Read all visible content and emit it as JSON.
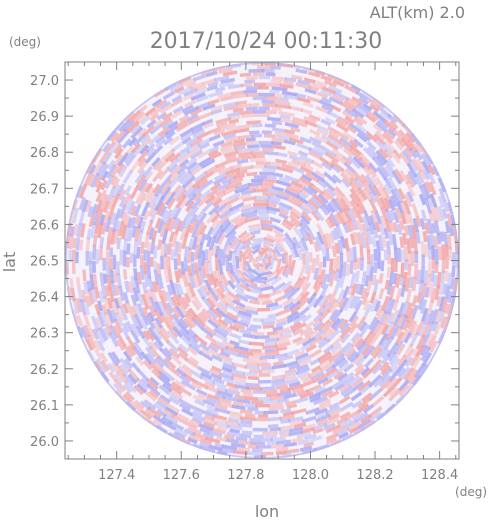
{
  "chart_data": {
    "type": "heatmap",
    "title": "2017/10/24 00:11:30",
    "altitude_label": "ALT(km) 2.0",
    "xlabel": "lon",
    "ylabel": "lat",
    "x_unit": "(deg)",
    "y_unit": "(deg)",
    "xlim": [
      127.24,
      128.46
    ],
    "ylim": [
      25.95,
      27.05
    ],
    "x_ticks": [
      127.4,
      127.6,
      127.8,
      128.0,
      128.2,
      128.4
    ],
    "y_ticks": [
      26.0,
      26.1,
      26.2,
      26.3,
      26.4,
      26.5,
      26.6,
      26.7,
      26.8,
      26.9,
      27.0
    ],
    "x_tick_labels": [
      "127.4",
      "127.6",
      "127.8",
      "128.0",
      "128.2",
      "128.4"
    ],
    "y_tick_labels": [
      "26.0",
      "26.1",
      "26.2",
      "26.3",
      "26.4",
      "26.5",
      "26.6",
      "26.7",
      "26.8",
      "26.9",
      "27.0"
    ],
    "center": {
      "lon": 127.85,
      "lat": 26.5
    },
    "radius_deg": {
      "lon": 0.61,
      "lat": 0.55
    },
    "colors": {
      "positive": "#f2a4a4",
      "negative": "#a8a8f2",
      "neutral": "#ffffff",
      "axis": "#808080"
    },
    "grid": false
  }
}
